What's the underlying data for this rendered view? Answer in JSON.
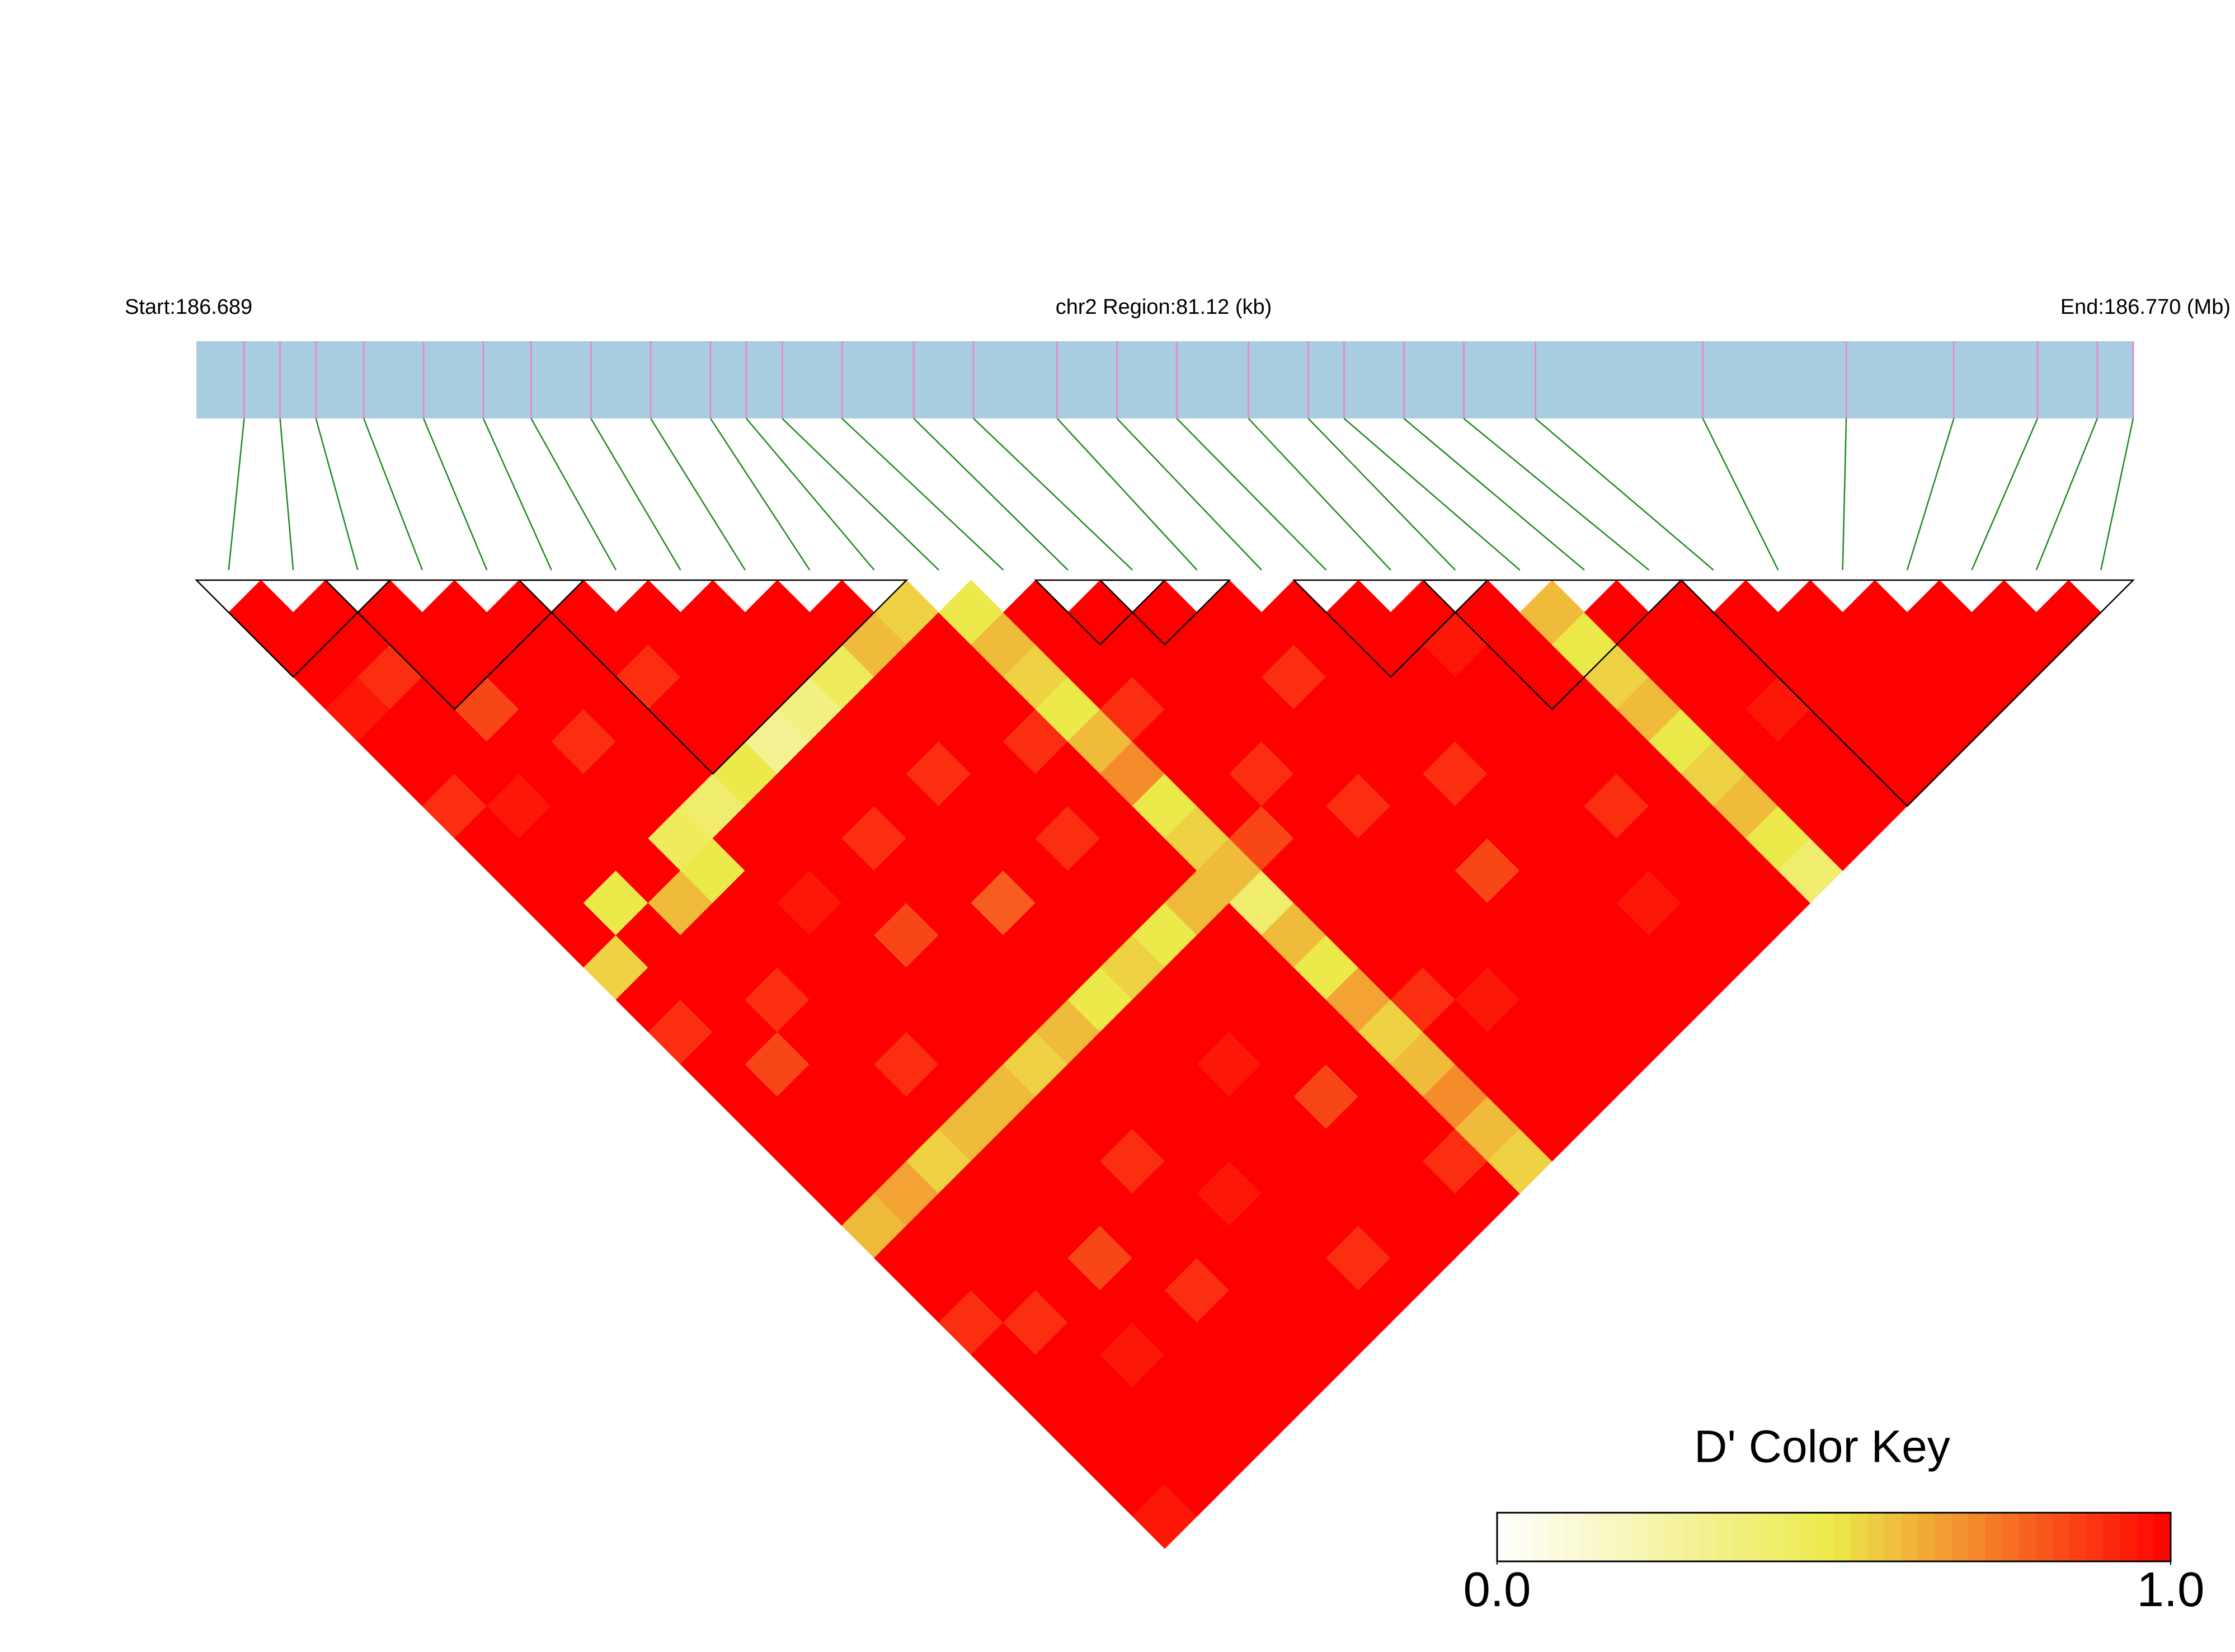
{
  "chart_data": {
    "type": "ld-heatmap",
    "start_label": "Start:186.689",
    "region_label": "chr2 Region:81.12 (kb)",
    "end_label": "End:186.770 (Mb)",
    "key_title": "D' Color Key",
    "xlim": [
      186.689,
      186.77
    ],
    "positions": [
      186.691,
      186.6925,
      186.694,
      186.696,
      186.6985,
      186.701,
      186.703,
      186.7055,
      186.708,
      186.7105,
      186.712,
      186.7135,
      186.716,
      186.719,
      186.7215,
      186.725,
      186.7275,
      186.73,
      186.733,
      186.7355,
      186.737,
      186.7395,
      186.742,
      186.745,
      186.752,
      186.758,
      186.7625,
      186.766,
      186.7685,
      186.77
    ],
    "dprime": [
      [
        1,
        1,
        1,
        0.95,
        1,
        1,
        0.9,
        1,
        1,
        1,
        1,
        0.55,
        1,
        0.9,
        1,
        1,
        1,
        1,
        1,
        0.6,
        1,
        1,
        0.9,
        1,
        1,
        1,
        1,
        1,
        0.95
      ],
      [
        1,
        1,
        0.9,
        1,
        1,
        1,
        0.95,
        1,
        1,
        0.5,
        1,
        1,
        1,
        1,
        0.85,
        1,
        1,
        1,
        0.65,
        1,
        1,
        1,
        0.9,
        1,
        1,
        1,
        1,
        1
      ],
      [
        1,
        1,
        1,
        0.85,
        1,
        1,
        1,
        1,
        1,
        0.6,
        1,
        1,
        0.9,
        1,
        1,
        1,
        1,
        0.55,
        1,
        1,
        1,
        1,
        1,
        0.95,
        1,
        1,
        1
      ],
      [
        1,
        1,
        1,
        1,
        0.9,
        1,
        1,
        0.45,
        0.5,
        1,
        1,
        1,
        1,
        1,
        0.9,
        1,
        0.6,
        1,
        1,
        1,
        0.85,
        1,
        1,
        1,
        1,
        1
      ],
      [
        1,
        1,
        1,
        1,
        1,
        1,
        0.4,
        1,
        1,
        0.95,
        1,
        1,
        1,
        1,
        1,
        0.6,
        1,
        1,
        1,
        1,
        1,
        0.9,
        1,
        1,
        1
      ],
      [
        1,
        1,
        0.9,
        1,
        1,
        0.5,
        1,
        1,
        1,
        1,
        0.85,
        1,
        1,
        1,
        0.55,
        1,
        1,
        0.9,
        1,
        1,
        1,
        1,
        1,
        1
      ],
      [
        1,
        1,
        1,
        1,
        0.3,
        1,
        1,
        0.9,
        1,
        1,
        1,
        1,
        1,
        0.6,
        1,
        1,
        1,
        1,
        0.95,
        1,
        1,
        1,
        1
      ],
      [
        1,
        1,
        1,
        0.35,
        1,
        1,
        1,
        1,
        1,
        0.8,
        1,
        1,
        0.5,
        1,
        1,
        1,
        1,
        1,
        1,
        1,
        0.9,
        1
      ],
      [
        1,
        1,
        0.45,
        1,
        1,
        0.9,
        1,
        1,
        1,
        1,
        1,
        0.55,
        1,
        1,
        0.95,
        1,
        1,
        1,
        1,
        1,
        1
      ],
      [
        1,
        0.6,
        1,
        1,
        1,
        1,
        1,
        0.9,
        1,
        1,
        0.5,
        1,
        1,
        1,
        1,
        0.85,
        1,
        1,
        1,
        1
      ],
      [
        0.55,
        1,
        1,
        1,
        0.9,
        1,
        1,
        1,
        1,
        0.6,
        1,
        1,
        1,
        1,
        1,
        1,
        1,
        0.9,
        1
      ],
      [
        0.5,
        0.6,
        0.55,
        0.5,
        0.6,
        0.7,
        0.5,
        0.55,
        0.6,
        0.4,
        0.6,
        0.5,
        0.65,
        0.55,
        0.6,
        0.7,
        0.6,
        0.55
      ],
      [
        1,
        1,
        1,
        0.9,
        1,
        1,
        1,
        0.85,
        1,
        1,
        1,
        1,
        0.9,
        1,
        1,
        1,
        1
      ],
      [
        1,
        1,
        1,
        1,
        1,
        0.9,
        1,
        1,
        1,
        1,
        1,
        1,
        0.95,
        1,
        1,
        1
      ],
      [
        1,
        1,
        1,
        1,
        1,
        1,
        0.9,
        1,
        1,
        1,
        1,
        1,
        1,
        1,
        1
      ],
      [
        1,
        1,
        0.9,
        1,
        1,
        1,
        1,
        1,
        0.85,
        1,
        1,
        1,
        1,
        1
      ],
      [
        1,
        1,
        1,
        1,
        1,
        0.9,
        1,
        1,
        1,
        1,
        1,
        1,
        1
      ],
      [
        1,
        1,
        1,
        1,
        1,
        1,
        1,
        1,
        1,
        0.95,
        1,
        1
      ],
      [
        1,
        0.95,
        1,
        1,
        1,
        1,
        0.9,
        1,
        1,
        1,
        1
      ],
      [
        1,
        1,
        1,
        1,
        1,
        1,
        1,
        1,
        1,
        1
      ],
      [
        0.6,
        0.5,
        0.55,
        0.6,
        0.5,
        0.55,
        0.6,
        0.5,
        0.4
      ],
      [
        1,
        1,
        1,
        1,
        1,
        1,
        1,
        1
      ],
      [
        1,
        1,
        1,
        0.95,
        1,
        1,
        1
      ],
      [
        1,
        1,
        1,
        1,
        1,
        1
      ],
      [
        1,
        1,
        1,
        1,
        1
      ],
      [
        1,
        1,
        1,
        1
      ],
      [
        1,
        1,
        1
      ],
      [
        1,
        1
      ],
      [
        1
      ]
    ],
    "blocks": [
      [
        0,
        2
      ],
      [
        2,
        5
      ],
      [
        5,
        10
      ],
      [
        13,
        14
      ],
      [
        14,
        15
      ],
      [
        17,
        19
      ],
      [
        19,
        22
      ],
      [
        23,
        29
      ]
    ],
    "colormap": [
      "#ffffff",
      "#ece94a",
      "#ff0000"
    ],
    "clim": [
      0,
      1
    ],
    "cticks": [
      {
        "value": 0,
        "label": "0.0"
      },
      {
        "value": 1,
        "label": "1.0"
      }
    ],
    "bar_color": "#a8cde1",
    "marker_color": "#e58ac8",
    "connector_color": "#1e8a1e"
  }
}
